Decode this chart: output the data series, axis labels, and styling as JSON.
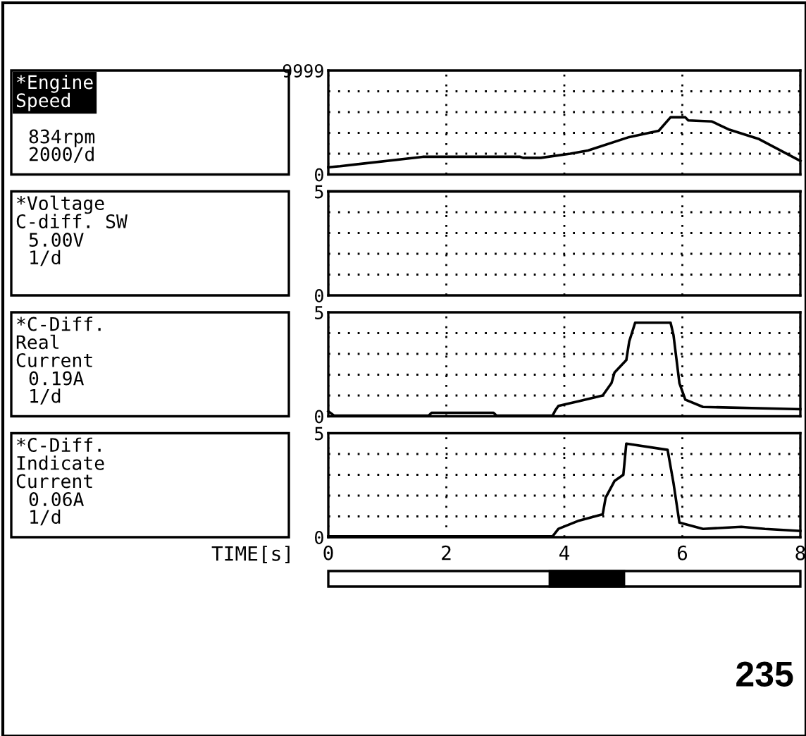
{
  "chart_data": [
    {
      "type": "line",
      "ylabel": "*Engine\nSpeed",
      "annotations": [
        "834rpm",
        "2000/d"
      ],
      "xlim": [
        0,
        8
      ],
      "xticks": [
        0,
        2,
        4,
        6,
        8
      ],
      "ylim": [
        0,
        9999
      ],
      "yticks": [
        0,
        {
          "value": 2000,
          "label": null
        },
        {
          "value": 4000,
          "label": null
        },
        {
          "value": 6000,
          "label": null
        },
        {
          "value": 8000,
          "label": null
        },
        9999
      ],
      "tick_labels": "y",
      "grid": true,
      "color": "#000000",
      "x": [
        0,
        0.2,
        1.6,
        3.25,
        3.3,
        3.6,
        4.1,
        4.4,
        5.1,
        5.6,
        5.8,
        6.05,
        6.1,
        6.5,
        6.8,
        7.3,
        8
      ],
      "values": [
        700,
        800,
        1700,
        1700,
        1600,
        1600,
        2000,
        2300,
        3600,
        4200,
        5500,
        5500,
        5200,
        5100,
        4300,
        3400,
        1300
      ]
    },
    {
      "type": "line",
      "ylabel": "*Voltage\nC-diff. SW",
      "annotations": [
        "5.00V",
        "1/d"
      ],
      "xlim": [
        0,
        8
      ],
      "xticks": [
        0,
        2,
        4,
        6,
        8
      ],
      "ylim": [
        0,
        5
      ],
      "yticks": [
        0,
        {
          "value": 1,
          "label": null
        },
        {
          "value": 2,
          "label": null
        },
        {
          "value": 3,
          "label": null
        },
        {
          "value": 4,
          "label": null
        },
        5
      ],
      "tick_labels": "y",
      "grid": true,
      "color": "#000000",
      "x": [
        0,
        8
      ],
      "values": [
        5,
        5
      ]
    },
    {
      "type": "line",
      "ylabel": "*C-Diff.\nReal\nCurrent",
      "annotations": [
        "0.19A",
        "1/d"
      ],
      "xlim": [
        0,
        8
      ],
      "xticks": [
        0,
        2,
        4,
        6,
        8
      ],
      "ylim": [
        0,
        5
      ],
      "yticks": [
        0,
        {
          "value": 1,
          "label": null
        },
        {
          "value": 2,
          "label": null
        },
        {
          "value": 3,
          "label": null
        },
        {
          "value": 4,
          "label": null
        },
        5
      ],
      "tick_labels": "y",
      "grid": true,
      "color": "#000000",
      "x": [
        0,
        0.1,
        1.7,
        1.75,
        2.8,
        2.85,
        3.8,
        3.85,
        3.9,
        4.25,
        4.65,
        4.8,
        4.85,
        5.05,
        5.1,
        5.2,
        5.8,
        5.85,
        5.95,
        6.05,
        6.35,
        8
      ],
      "values": [
        0.24,
        0.03,
        0.03,
        0.17,
        0.17,
        0.03,
        0.03,
        0.3,
        0.5,
        0.73,
        1.0,
        1.6,
        2.1,
        2.7,
        3.6,
        4.5,
        4.5,
        3.9,
        1.6,
        0.8,
        0.45,
        0.34
      ]
    },
    {
      "type": "line",
      "ylabel": "*C-Diff.\nIndicate\nCurrent",
      "annotations": [
        "0.06A",
        "1/d",
        "235"
      ],
      "xlabel": "TIME[s]",
      "xlim": [
        0,
        8
      ],
      "xticks": [
        0,
        2,
        4,
        6,
        8
      ],
      "ylim": [
        0,
        5
      ],
      "yticks": [
        0,
        {
          "value": 1,
          "label": null
        },
        {
          "value": 2,
          "label": null
        },
        {
          "value": 3,
          "label": null
        },
        {
          "value": 4,
          "label": null
        },
        5
      ],
      "grid": true,
      "color": "#000000",
      "x": [
        0,
        3.8,
        3.9,
        4.25,
        4.65,
        4.7,
        4.85,
        5.0,
        5.05,
        5.75,
        5.85,
        5.95,
        6.35,
        7.0,
        7.4,
        8
      ],
      "values": [
        0.04,
        0.04,
        0.4,
        0.8,
        1.1,
        1.9,
        2.7,
        3.0,
        4.5,
        4.2,
        2.6,
        0.7,
        0.4,
        0.5,
        0.4,
        0.3
      ]
    }
  ]
}
